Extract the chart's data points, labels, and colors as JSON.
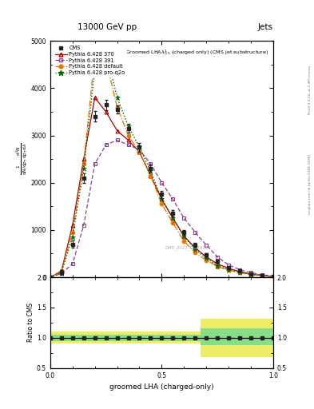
{
  "title_top": "13000 GeV pp",
  "title_right": "Jets",
  "plot_title": "Groomed LHA$\\lambda^{1}_{0.5}$ (charged only) (CMS jet substructure)",
  "xlabel": "groomed LHA (charged-only)",
  "ylabel_main": "$\\frac{1}{\\mathrm{d}N/\\mathrm{d}p_T}\\frac{\\mathrm{d}^2N}{\\mathrm{d}p_T\\mathrm{d}\\lambda}$",
  "ylabel_ratio": "Ratio to CMS",
  "watermark": "CMS_2021_I1920187",
  "right_label": "mcplots.cern.ch [arXiv:1306.3436]",
  "right_label2": "Rivet 3.1.10, ≥ 3.4M events",
  "x": [
    0.0,
    0.05,
    0.1,
    0.15,
    0.2,
    0.25,
    0.3,
    0.35,
    0.4,
    0.45,
    0.5,
    0.55,
    0.6,
    0.65,
    0.7,
    0.75,
    0.8,
    0.85,
    0.9,
    0.95,
    1.0
  ],
  "cms_y": [
    0,
    100,
    700,
    2100,
    3400,
    3650,
    3550,
    3150,
    2750,
    2300,
    1750,
    1350,
    950,
    680,
    480,
    330,
    210,
    130,
    75,
    38,
    10
  ],
  "cms_yerr": [
    0,
    50,
    80,
    100,
    110,
    110,
    90,
    90,
    90,
    90,
    70,
    70,
    55,
    45,
    35,
    25,
    18,
    12,
    8,
    6,
    4
  ],
  "py370_y": [
    0,
    130,
    1100,
    2500,
    3800,
    3500,
    3100,
    2900,
    2650,
    2150,
    1650,
    1250,
    870,
    620,
    430,
    280,
    190,
    115,
    65,
    38,
    14
  ],
  "py391_y": [
    0,
    80,
    280,
    1100,
    2400,
    2800,
    2900,
    2800,
    2700,
    2400,
    2000,
    1650,
    1250,
    950,
    680,
    430,
    260,
    160,
    95,
    52,
    22
  ],
  "pydef_y": [
    0,
    130,
    950,
    2400,
    4700,
    4600,
    3600,
    3000,
    2650,
    2150,
    1550,
    1150,
    760,
    520,
    360,
    225,
    150,
    95,
    55,
    32,
    11
  ],
  "pyq2o_y": [
    0,
    90,
    850,
    2300,
    4400,
    4800,
    3800,
    3200,
    2750,
    2250,
    1650,
    1250,
    860,
    590,
    400,
    245,
    160,
    105,
    62,
    36,
    13
  ],
  "green_band_lo": [
    0.95,
    0.95,
    0.95,
    0.95,
    0.95,
    0.95,
    0.95,
    0.95,
    0.95,
    0.95,
    0.95,
    0.95,
    0.95,
    0.95,
    0.88,
    0.88,
    0.88,
    0.88,
    0.88,
    0.88,
    0.88
  ],
  "green_band_hi": [
    1.05,
    1.05,
    1.05,
    1.05,
    1.05,
    1.05,
    1.05,
    1.05,
    1.05,
    1.05,
    1.05,
    1.05,
    1.05,
    1.05,
    1.15,
    1.15,
    1.15,
    1.15,
    1.15,
    1.15,
    1.15
  ],
  "yellow_band_lo": [
    0.9,
    0.9,
    0.9,
    0.9,
    0.9,
    0.9,
    0.9,
    0.9,
    0.9,
    0.9,
    0.9,
    0.9,
    0.9,
    0.9,
    0.68,
    0.68,
    0.68,
    0.68,
    0.68,
    0.68,
    0.68
  ],
  "yellow_band_hi": [
    1.1,
    1.1,
    1.1,
    1.1,
    1.1,
    1.1,
    1.1,
    1.1,
    1.1,
    1.1,
    1.1,
    1.1,
    1.1,
    1.1,
    1.32,
    1.32,
    1.32,
    1.32,
    1.32,
    1.32,
    1.32
  ],
  "cms_color": "#222222",
  "py370_color": "#aa0000",
  "py391_color": "#884488",
  "pydef_color": "#dd7700",
  "pyq2o_color": "#006600",
  "green_band_color": "#88dd88",
  "yellow_band_color": "#eeee66",
  "ylim_main": [
    0,
    5000
  ],
  "ylim_ratio": [
    0.5,
    2.0
  ],
  "xlim": [
    0.0,
    1.0
  ]
}
